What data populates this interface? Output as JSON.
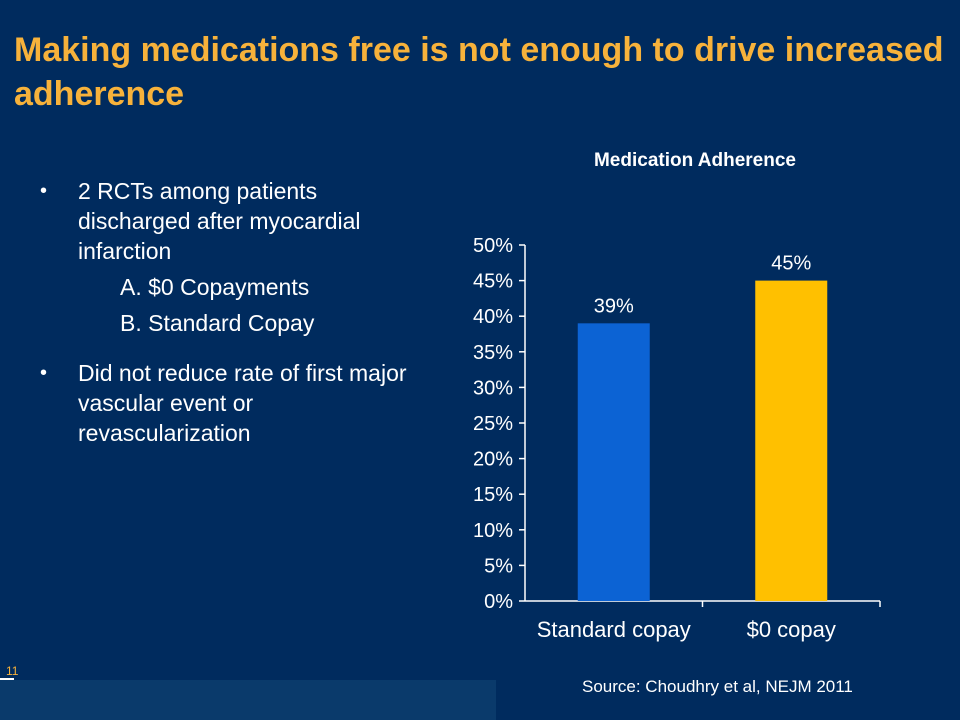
{
  "slide": {
    "title": "Making medications free is not enough to drive increased adherence",
    "bullets": [
      {
        "text": "2 RCTs among patients discharged after myocardial infarction",
        "subitems": [
          "A. $0 Copayments",
          "B. Standard Copay"
        ]
      },
      {
        "text": "Did not reduce  rate of first major vascular event or revascularization",
        "subitems": []
      }
    ],
    "source": "Source: Choudhry et al, NEJM 2011",
    "page_number": "11",
    "bullet_glyph": "•"
  },
  "colors": {
    "background": "#002b5e",
    "title": "#f7b23b",
    "bar_standard": "#0c63d4",
    "bar_free": "#ffc000"
  },
  "chart_data": {
    "type": "bar",
    "title": "Medication Adherence",
    "categories": [
      "Standard copay",
      "$0 copay"
    ],
    "values": [
      39,
      45
    ],
    "value_labels": [
      "39%",
      "45%"
    ],
    "bar_colors": [
      "#0c63d4",
      "#ffc000"
    ],
    "ylim": [
      0,
      50
    ],
    "yticks": [
      0,
      5,
      10,
      15,
      20,
      25,
      30,
      35,
      40,
      45,
      50
    ],
    "ytick_labels": [
      "0%",
      "5%",
      "10%",
      "15%",
      "20%",
      "25%",
      "30%",
      "35%",
      "40%",
      "45%",
      "50%"
    ],
    "xlabel": "",
    "ylabel": "",
    "grid": false,
    "legend": false
  }
}
